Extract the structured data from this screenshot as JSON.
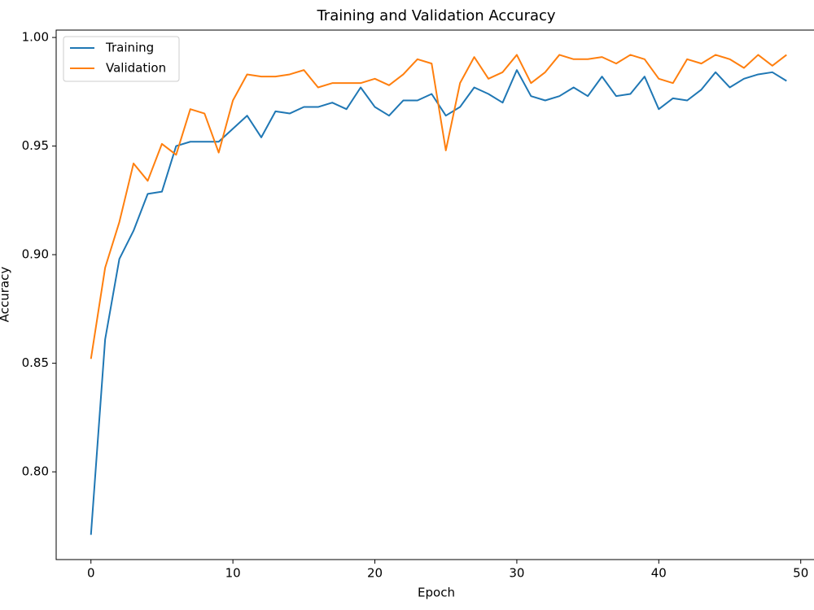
{
  "chart_data": {
    "type": "line",
    "title": "Training and Validation Accuracy",
    "x_label": "Epoch",
    "y_label": "Accuracy",
    "x": [
      0,
      1,
      2,
      3,
      4,
      5,
      6,
      7,
      8,
      9,
      10,
      11,
      12,
      13,
      14,
      15,
      16,
      17,
      18,
      19,
      20,
      21,
      22,
      23,
      24,
      25,
      26,
      27,
      28,
      29,
      30,
      31,
      32,
      33,
      34,
      35,
      36,
      37,
      38,
      39,
      40,
      41,
      42,
      43,
      44,
      45,
      46,
      47,
      48,
      49
    ],
    "series": [
      {
        "name": "Training",
        "color": "#1f77b4",
        "values": [
          0.771,
          0.861,
          0.898,
          0.911,
          0.928,
          0.929,
          0.95,
          0.952,
          0.952,
          0.952,
          0.958,
          0.964,
          0.954,
          0.966,
          0.965,
          0.968,
          0.968,
          0.97,
          0.967,
          0.977,
          0.968,
          0.964,
          0.971,
          0.971,
          0.974,
          0.964,
          0.968,
          0.977,
          0.974,
          0.97,
          0.985,
          0.973,
          0.971,
          0.973,
          0.977,
          0.973,
          0.982,
          0.973,
          0.974,
          0.982,
          0.967,
          0.972,
          0.971,
          0.976,
          0.984,
          0.977,
          0.981,
          0.983,
          0.984,
          0.98
        ]
      },
      {
        "name": "Validation",
        "color": "#ff7f0e",
        "values": [
          0.852,
          0.894,
          0.915,
          0.942,
          0.934,
          0.951,
          0.946,
          0.967,
          0.965,
          0.947,
          0.971,
          0.983,
          0.982,
          0.982,
          0.983,
          0.985,
          0.977,
          0.979,
          0.979,
          0.979,
          0.981,
          0.978,
          0.983,
          0.99,
          0.988,
          0.948,
          0.979,
          0.991,
          0.981,
          0.984,
          0.992,
          0.979,
          0.984,
          0.992,
          0.99,
          0.99,
          0.991,
          0.988,
          0.992,
          0.99,
          0.981,
          0.979,
          0.99,
          0.988,
          0.992,
          0.99,
          0.986,
          0.992,
          0.987,
          0.992
        ]
      }
    ],
    "xlim": [
      -2.45,
      51.45
    ],
    "ylim": [
      0.7596,
      1.0034
    ],
    "xticks": [
      0,
      10,
      20,
      30,
      40,
      50
    ],
    "yticks": [
      {
        "value": 0.8,
        "label": "0.80"
      },
      {
        "value": 0.85,
        "label": "0.85"
      },
      {
        "value": 0.9,
        "label": "0.90"
      },
      {
        "value": 0.95,
        "label": "0.95"
      },
      {
        "value": 1.0,
        "label": "1.00"
      }
    ],
    "grid": false,
    "legend": "upper left"
  }
}
